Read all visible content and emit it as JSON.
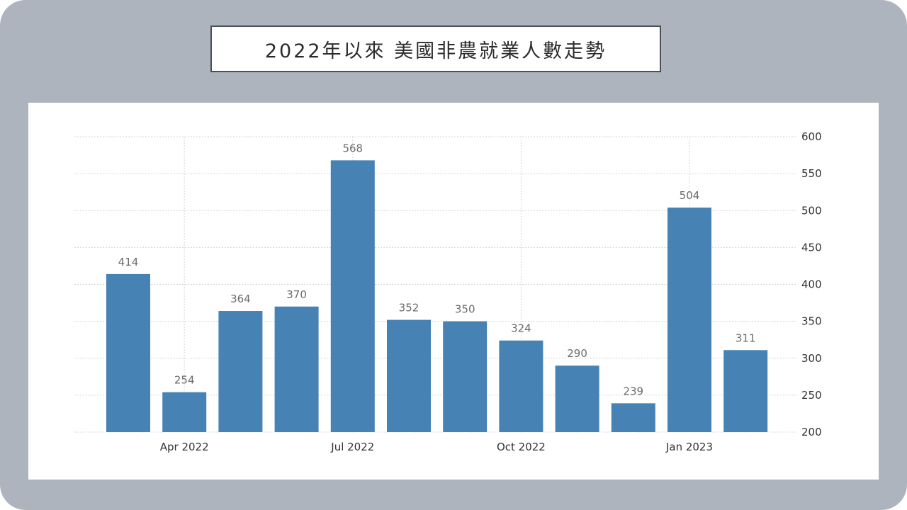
{
  "header": {
    "title": "2022年以來 美國非農就業人數走勢"
  },
  "chart_data": {
    "type": "bar",
    "title": "2022年以來 美國非農就業人數走勢",
    "xlabel": "",
    "ylabel": "",
    "ylim": [
      200,
      600
    ],
    "y_ticks": [
      200,
      250,
      300,
      350,
      400,
      450,
      500,
      550,
      600
    ],
    "y_axis_side": "right",
    "grid": true,
    "bar_color": "#4682b4",
    "categories": [
      "Mar 2022",
      "Apr 2022",
      "May 2022",
      "Jun 2022",
      "Jul 2022",
      "Aug 2022",
      "Sep 2022",
      "Oct 2022",
      "Nov 2022",
      "Dec 2022",
      "Jan 2023",
      "Feb 2023"
    ],
    "x_tick_labels": [
      {
        "category": "Apr 2022",
        "label": "Apr 2022"
      },
      {
        "category": "Jul 2022",
        "label": "Jul 2022"
      },
      {
        "category": "Oct 2022",
        "label": "Oct 2022"
      },
      {
        "category": "Jan 2023",
        "label": "Jan 2023"
      }
    ],
    "values": [
      414,
      254,
      364,
      370,
      568,
      352,
      350,
      324,
      290,
      239,
      504,
      311
    ]
  }
}
